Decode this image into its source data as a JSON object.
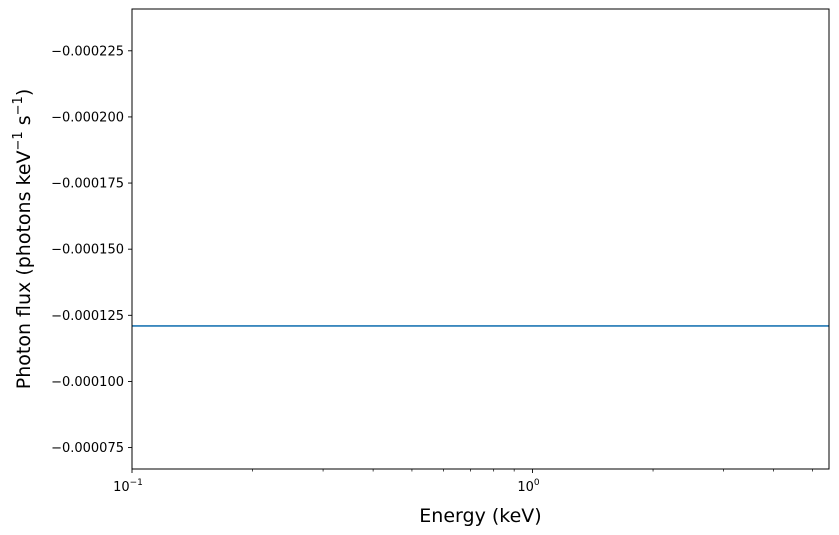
{
  "chart_data": {
    "type": "line",
    "title": "",
    "xlabel": "Energy (keV)",
    "ylabel": {
      "prefix": "Photon flux (photons keV",
      "sup1": "−1",
      "mid": " s",
      "sup2": "−1",
      "suffix": ")"
    },
    "xscale": "log",
    "xlim": [
      0.1,
      5.5
    ],
    "ylim": [
      -6.69e-05,
      -0.0002408
    ],
    "y_inverted": true,
    "grid": false,
    "legend": "none",
    "x_ticks": [
      {
        "value": 0.1,
        "base": "10",
        "exp": "−1"
      },
      {
        "value": 1,
        "base": "10",
        "exp": "0"
      }
    ],
    "x_minor_ticks": [
      0.2,
      0.3,
      0.4,
      0.5,
      0.6,
      0.7,
      0.8,
      0.9,
      2,
      3,
      4,
      5
    ],
    "y_ticks": [
      {
        "value": -0.000225,
        "label": "−0.000225"
      },
      {
        "value": -0.0002,
        "label": "−0.000200"
      },
      {
        "value": -0.000175,
        "label": "−0.000175"
      },
      {
        "value": -0.00015,
        "label": "−0.000150"
      },
      {
        "value": -0.000125,
        "label": "−0.000125"
      },
      {
        "value": -0.0001,
        "label": "−0.000100"
      },
      {
        "value": -7.5e-05,
        "label": "−0.000075"
      }
    ],
    "series": [
      {
        "color": "#1f77b4",
        "x": [
          0.1,
          5.5
        ],
        "y": [
          -0.000121,
          -0.000121
        ]
      }
    ]
  }
}
